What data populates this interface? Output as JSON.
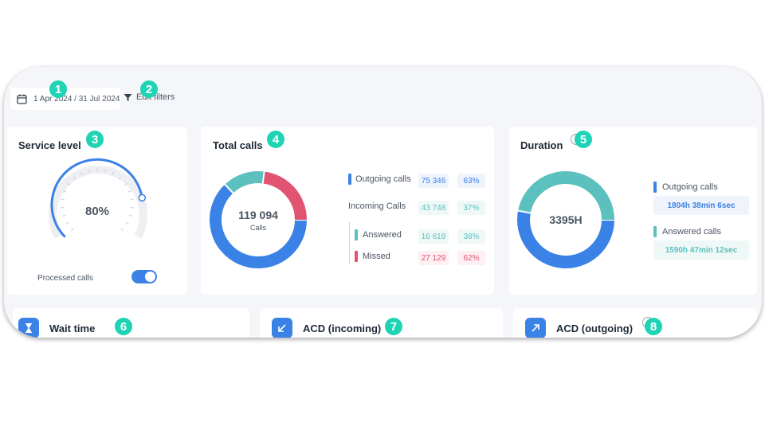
{
  "header": {
    "date_range": "1 Apr 2024 / 31 Jul 2024",
    "edit_filters": "Edit filters"
  },
  "badges": [
    "1",
    "2",
    "3",
    "4",
    "5",
    "6",
    "7",
    "8"
  ],
  "service_level": {
    "title": "Service level",
    "value": "80%",
    "value_fraction": 0.8,
    "toggle_label": "Processed calls",
    "toggle_on": true
  },
  "total_calls": {
    "title": "Total calls",
    "total": "119 094",
    "total_caption": "Calls",
    "rows": [
      {
        "label": "Outgoing calls",
        "count": "75 346",
        "percent": "63%"
      },
      {
        "label": "Incoming Calls",
        "count": "43 748",
        "percent": "37%"
      },
      {
        "label": "Answered",
        "count": "16 619",
        "percent": "38%"
      },
      {
        "label": "Missed",
        "count": "27 129",
        "percent": "62%"
      }
    ],
    "donut_segments": [
      {
        "name": "Outgoing calls",
        "fraction": 0.63,
        "color": "#3b82e6"
      },
      {
        "name": "Answered",
        "fraction": 0.14,
        "color": "#5bc0be"
      },
      {
        "name": "Missed",
        "fraction": 0.23,
        "color": "#e05471"
      }
    ]
  },
  "duration": {
    "title": "Duration",
    "total": "3395H",
    "rows": [
      {
        "label": "Outgoing calls",
        "value": "1804h 38min 6sec"
      },
      {
        "label": "Answered calls",
        "value": "1590h 47min 12sec"
      }
    ],
    "donut_segments": [
      {
        "name": "Outgoing calls",
        "fraction": 0.53,
        "color": "#3b82e6"
      },
      {
        "name": "Answered calls",
        "fraction": 0.47,
        "color": "#5bc0be"
      }
    ]
  },
  "tiles": {
    "wait_time": "Wait time",
    "acd_incoming": "ACD (incoming)",
    "acd_outgoing": "ACD (outgoing)"
  },
  "colors": {
    "blue": "#3b82e6",
    "teal": "#5bc0be",
    "red": "#e05471",
    "badge": "#1fd3b5"
  }
}
